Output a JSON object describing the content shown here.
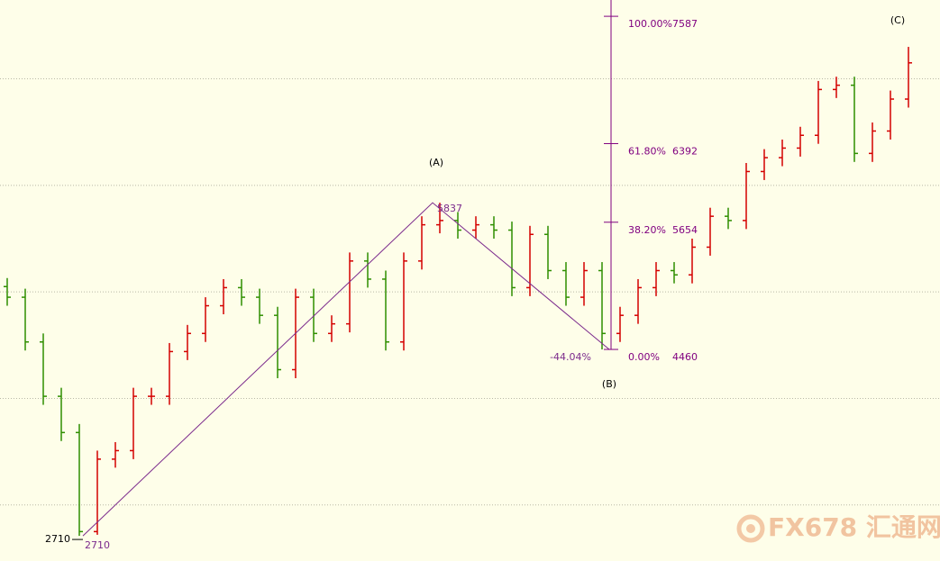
{
  "chart_data": {
    "type": "ohlc",
    "ylim": [
      2474,
      7740
    ],
    "xlim": [
      -0.4,
      51.75
    ],
    "grid_lines": [
      3000,
      4000,
      5000,
      6000,
      7000
    ],
    "up_color": "#d40000",
    "down_color": "#2f8f00",
    "open": [
      5050,
      4950,
      4530,
      4020,
      3680,
      2750,
      3430,
      3510,
      4020,
      4020,
      4440,
      4610,
      4870,
      5040,
      4950,
      4780,
      4270,
      4950,
      4610,
      4700,
      5290,
      5120,
      4530,
      5290,
      5630,
      5670,
      5580,
      5630,
      5580,
      5040,
      5540,
      5200,
      4950,
      5200,
      4610,
      4780,
      5040,
      5200,
      5160,
      5420,
      5710,
      5670,
      6130,
      6260,
      6350,
      6470,
      6900,
      6940,
      6300,
      6510,
      6810
    ],
    "high": [
      5130,
      5030,
      4610,
      4100,
      3760,
      3510,
      3590,
      4100,
      4100,
      4520,
      4690,
      4950,
      5120,
      5120,
      5030,
      4860,
      5030,
      5030,
      4780,
      5370,
      5370,
      5200,
      5370,
      5710,
      5837,
      5750,
      5710,
      5710,
      5660,
      5620,
      5620,
      5280,
      5280,
      5280,
      4860,
      5120,
      5280,
      5280,
      5500,
      5790,
      5790,
      6210,
      6340,
      6430,
      6550,
      6980,
      7020,
      7020,
      6590,
      6890,
      7300
    ],
    "low": [
      4870,
      4450,
      3940,
      3600,
      2710,
      2720,
      3350,
      3430,
      3940,
      3940,
      4360,
      4530,
      4790,
      4870,
      4700,
      4190,
      4190,
      4530,
      4530,
      4620,
      5040,
      4450,
      4450,
      5210,
      5550,
      5500,
      5500,
      5500,
      4960,
      4960,
      5120,
      4870,
      4870,
      4460,
      4530,
      4700,
      4960,
      5080,
      5080,
      5340,
      5590,
      5590,
      6050,
      6180,
      6270,
      6390,
      6820,
      6220,
      6220,
      6430,
      6730
    ],
    "close": [
      4950,
      4530,
      4020,
      3680,
      2750,
      3430,
      3510,
      4020,
      4020,
      4440,
      4610,
      4870,
      5040,
      4950,
      4780,
      4270,
      4950,
      4610,
      4700,
      5290,
      5120,
      4530,
      5290,
      5630,
      5670,
      5580,
      5630,
      5580,
      5040,
      5540,
      5200,
      4950,
      5200,
      4610,
      4780,
      5040,
      5200,
      5160,
      5420,
      5710,
      5670,
      6130,
      6260,
      6350,
      6470,
      6900,
      6940,
      6300,
      6510,
      6810,
      7150
    ],
    "wave": {
      "color": "#7b2a8c",
      "points": [
        {
          "x": 4.2,
          "y": 2710
        },
        {
          "x": 23.6,
          "y": 5837
        },
        {
          "x": 33.4,
          "y": 4460
        }
      ],
      "labels": [
        "(A)",
        "(B)",
        "(C)"
      ],
      "retrace": "-44.04%"
    },
    "fib": {
      "color": "#800080",
      "x": 33.5,
      "levels": [
        {
          "pct": "100.00%",
          "price": 7587
        },
        {
          "pct": "61.80%",
          "price": 6392
        },
        {
          "pct": "38.20%",
          "price": 5654
        },
        {
          "pct": "0.00%",
          "price": 4460
        }
      ]
    },
    "watermark": "FX678 汇通网"
  }
}
